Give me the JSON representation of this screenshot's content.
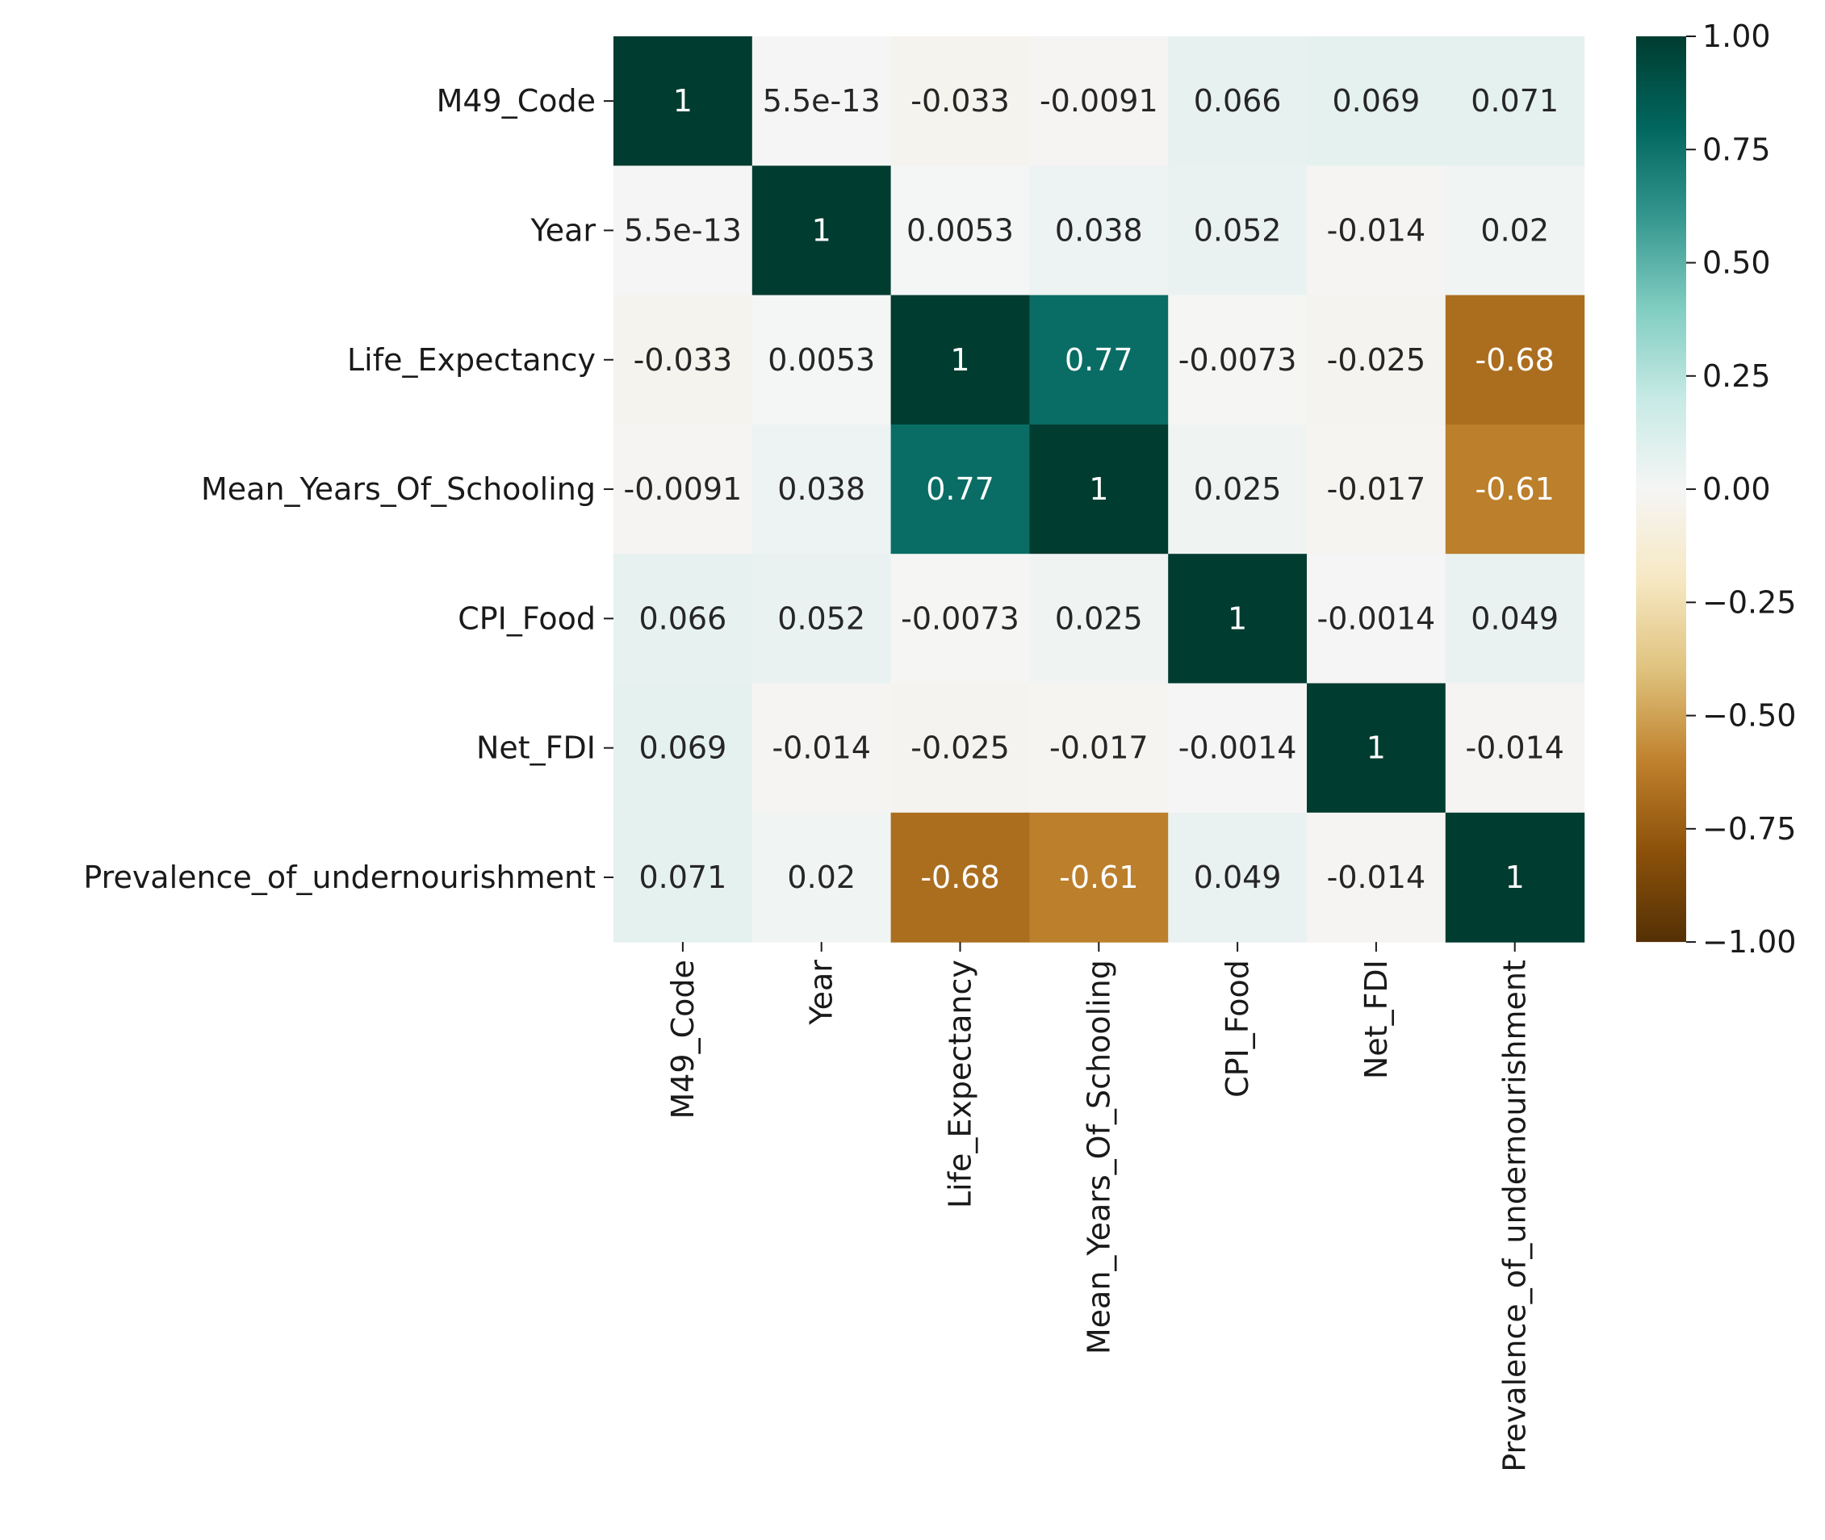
{
  "chart_data": {
    "type": "heatmap",
    "title": "",
    "xlabel": "",
    "ylabel": "",
    "row_labels": [
      "M49_Code",
      "Year",
      "Life_Expectancy",
      "Mean_Years_Of_Schooling",
      "CPI_Food",
      "Net_FDI",
      "Prevalence_of_undernourishment"
    ],
    "col_labels": [
      "M49_Code",
      "Year",
      "Life_Expectancy",
      "Mean_Years_Of_Schooling",
      "CPI_Food",
      "Net_FDI",
      "Prevalence_of_undernourishment"
    ],
    "values": [
      [
        1,
        5.5e-13,
        -0.033,
        -0.0091,
        0.066,
        0.069,
        0.071
      ],
      [
        5.5e-13,
        1,
        0.0053,
        0.038,
        0.052,
        -0.014,
        0.02
      ],
      [
        -0.033,
        0.0053,
        1,
        0.77,
        -0.0073,
        -0.025,
        -0.68
      ],
      [
        -0.0091,
        0.038,
        0.77,
        1,
        0.025,
        -0.017,
        -0.61
      ],
      [
        0.066,
        0.052,
        -0.0073,
        0.025,
        1,
        -0.0014,
        0.049
      ],
      [
        0.069,
        -0.014,
        -0.025,
        -0.017,
        -0.0014,
        1,
        -0.014
      ],
      [
        0.071,
        0.02,
        -0.68,
        -0.61,
        0.049,
        -0.014,
        1
      ]
    ],
    "annotations": [
      [
        "1",
        "5.5e-13",
        "-0.033",
        "-0.0091",
        "0.066",
        "0.069",
        "0.071"
      ],
      [
        "5.5e-13",
        "1",
        "0.0053",
        "0.038",
        "0.052",
        "-0.014",
        "0.02"
      ],
      [
        "-0.033",
        "0.0053",
        "1",
        "0.77",
        "-0.0073",
        "-0.025",
        "-0.68"
      ],
      [
        "-0.0091",
        "0.038",
        "0.77",
        "1",
        "0.025",
        "-0.017",
        "-0.61"
      ],
      [
        "0.066",
        "0.052",
        "-0.0073",
        "0.025",
        "1",
        "-0.0014",
        "0.049"
      ],
      [
        "0.069",
        "-0.014",
        "-0.025",
        "-0.017",
        "-0.0014",
        "1",
        "-0.014"
      ],
      [
        "0.071",
        "0.02",
        "-0.68",
        "-0.61",
        "0.049",
        "-0.014",
        "1"
      ]
    ],
    "colormap": "BrBG",
    "vmin": -1,
    "vmax": 1,
    "colorbar_ticks": [
      1.0,
      0.75,
      0.5,
      0.25,
      0.0,
      -0.25,
      -0.5,
      -0.75,
      -1.0
    ],
    "colorbar_tick_labels": [
      "1.00",
      "0.75",
      "0.50",
      "0.25",
      "0.00",
      "−0.25",
      "−0.50",
      "−0.75",
      "−1.00"
    ],
    "colorbar_location": "right"
  },
  "colors": {
    "text_dark": "#262626",
    "text_light": "#ffffff",
    "axis": "#1a1a1a"
  }
}
